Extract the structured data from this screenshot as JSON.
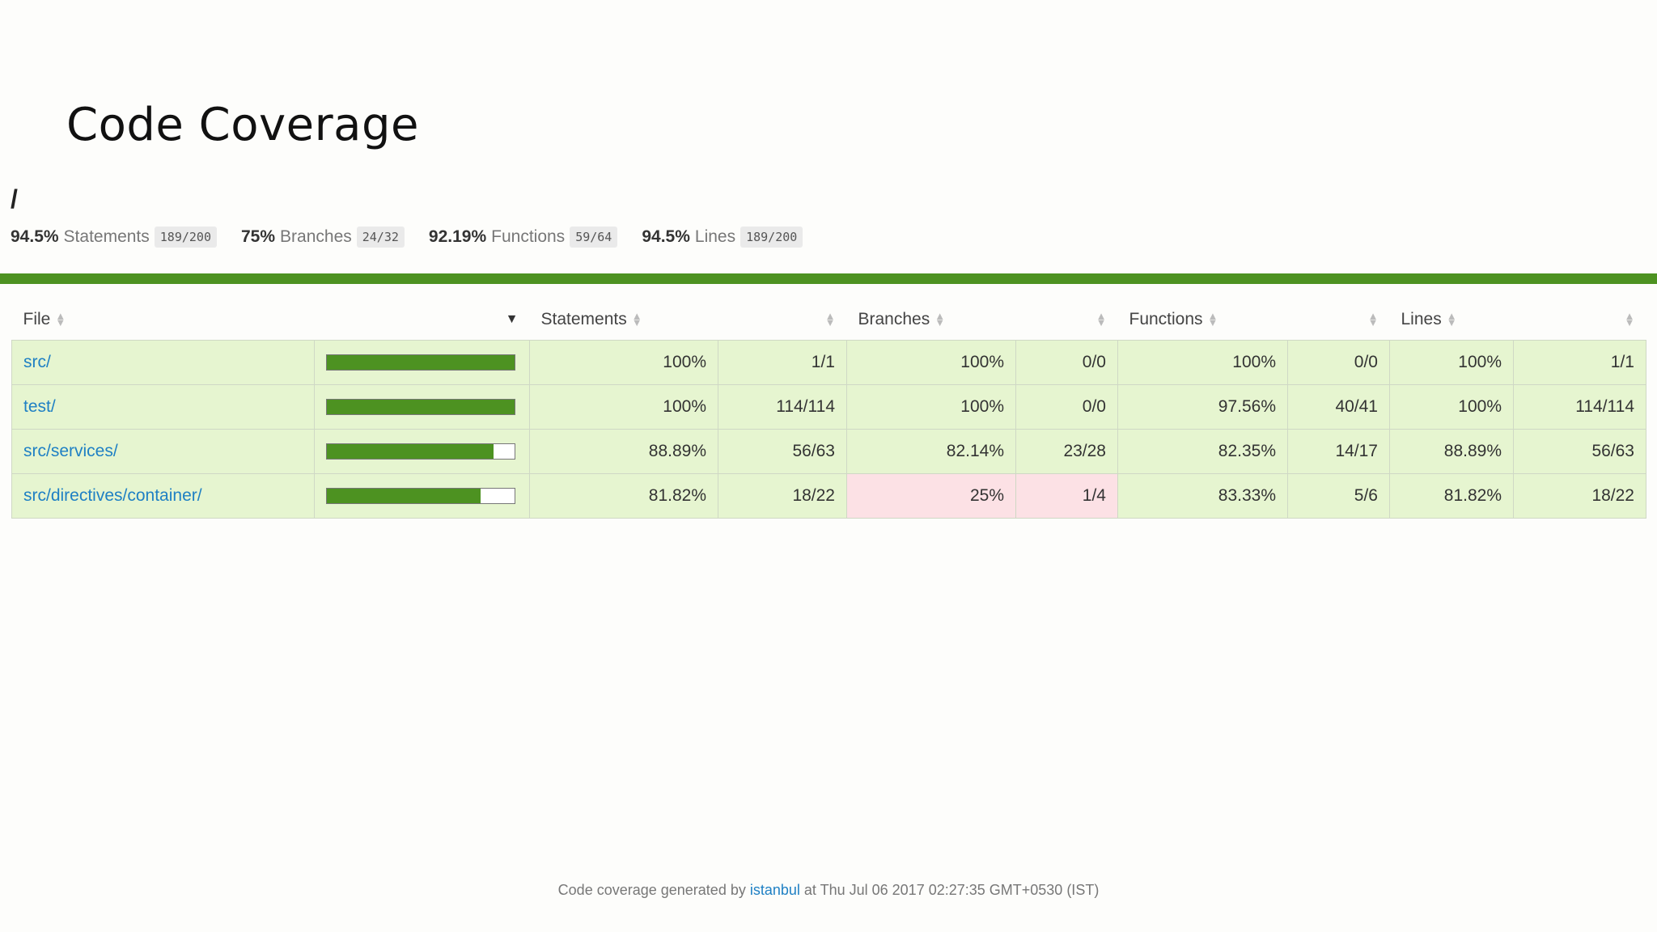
{
  "page": {
    "title": "Code Coverage",
    "path": "/"
  },
  "summary": [
    {
      "pct": "94.5%",
      "label": "Statements",
      "fraction": "189/200"
    },
    {
      "pct": "75%",
      "label": "Branches",
      "fraction": "24/32"
    },
    {
      "pct": "92.19%",
      "label": "Functions",
      "fraction": "59/64"
    },
    {
      "pct": "94.5%",
      "label": "Lines",
      "fraction": "189/200"
    }
  ],
  "colors": {
    "accent": "#4d9221",
    "high_bg": "#e6f5d0",
    "low_bg": "#fce1e5",
    "link": "#1f80c4"
  },
  "table": {
    "headers": {
      "file": "File",
      "statements": "Statements",
      "branches": "Branches",
      "functions": "Functions",
      "lines": "Lines"
    },
    "rows": [
      {
        "file": "src/",
        "coverage": 1.0,
        "stmt_pct": "100%",
        "stmt_frac": "1/1",
        "br_pct": "100%",
        "br_frac": "0/0",
        "fn_pct": "100%",
        "fn_frac": "0/0",
        "ln_pct": "100%",
        "ln_frac": "1/1"
      },
      {
        "file": "test/",
        "coverage": 1.0,
        "stmt_pct": "100%",
        "stmt_frac": "114/114",
        "br_pct": "100%",
        "br_frac": "0/0",
        "fn_pct": "97.56%",
        "fn_frac": "40/41",
        "ln_pct": "100%",
        "ln_frac": "114/114"
      },
      {
        "file": "src/services/",
        "coverage": 0.8889,
        "stmt_pct": "88.89%",
        "stmt_frac": "56/63",
        "br_pct": "82.14%",
        "br_frac": "23/28",
        "fn_pct": "82.35%",
        "fn_frac": "14/17",
        "ln_pct": "88.89%",
        "ln_frac": "56/63"
      },
      {
        "file": "src/directives/container/",
        "coverage": 0.8182,
        "stmt_pct": "81.82%",
        "stmt_frac": "18/22",
        "br_pct": "25%",
        "br_frac": "1/4",
        "br_low": true,
        "fn_pct": "83.33%",
        "fn_frac": "5/6",
        "ln_pct": "81.82%",
        "ln_frac": "18/22"
      }
    ]
  },
  "footer": {
    "prefix": "Code coverage generated by",
    "link_text": "istanbul",
    "suffix": "at Thu Jul 06 2017 02:27:35 GMT+0530 (IST)"
  }
}
